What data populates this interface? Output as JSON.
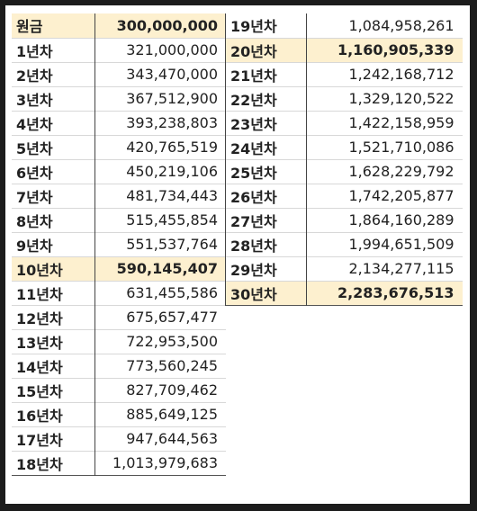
{
  "left_rows": [
    {
      "label": "원금",
      "value": "300,000,000",
      "highlight": true
    },
    {
      "label": "1년차",
      "value": "321,000,000",
      "highlight": false
    },
    {
      "label": "2년차",
      "value": "343,470,000",
      "highlight": false
    },
    {
      "label": "3년차",
      "value": "367,512,900",
      "highlight": false
    },
    {
      "label": "4년차",
      "value": "393,238,803",
      "highlight": false
    },
    {
      "label": "5년차",
      "value": "420,765,519",
      "highlight": false
    },
    {
      "label": "6년차",
      "value": "450,219,106",
      "highlight": false
    },
    {
      "label": "7년차",
      "value": "481,734,443",
      "highlight": false
    },
    {
      "label": "8년차",
      "value": "515,455,854",
      "highlight": false
    },
    {
      "label": "9년차",
      "value": "551,537,764",
      "highlight": false
    },
    {
      "label": "10년차",
      "value": "590,145,407",
      "highlight": true
    },
    {
      "label": "11년차",
      "value": "631,455,586",
      "highlight": false
    },
    {
      "label": "12년차",
      "value": "675,657,477",
      "highlight": false
    },
    {
      "label": "13년차",
      "value": "722,953,500",
      "highlight": false
    },
    {
      "label": "14년차",
      "value": "773,560,245",
      "highlight": false
    },
    {
      "label": "15년차",
      "value": "827,709,462",
      "highlight": false
    },
    {
      "label": "16년차",
      "value": "885,649,125",
      "highlight": false
    },
    {
      "label": "17년차",
      "value": "947,644,563",
      "highlight": false
    },
    {
      "label": "18년차",
      "value": "1,013,979,683",
      "highlight": false
    }
  ],
  "right_rows": [
    {
      "label": "19년차",
      "value": "1,084,958,261",
      "highlight": false
    },
    {
      "label": "20년차",
      "value": "1,160,905,339",
      "highlight": true
    },
    {
      "label": "21년차",
      "value": "1,242,168,712",
      "highlight": false
    },
    {
      "label": "22년차",
      "value": "1,329,120,522",
      "highlight": false
    },
    {
      "label": "23년차",
      "value": "1,422,158,959",
      "highlight": false
    },
    {
      "label": "24년차",
      "value": "1,521,710,086",
      "highlight": false
    },
    {
      "label": "25년차",
      "value": "1,628,229,792",
      "highlight": false
    },
    {
      "label": "26년차",
      "value": "1,742,205,877",
      "highlight": false
    },
    {
      "label": "27년차",
      "value": "1,864,160,289",
      "highlight": false
    },
    {
      "label": "28년차",
      "value": "1,994,651,509",
      "highlight": false
    },
    {
      "label": "29년차",
      "value": "2,134,277,115",
      "highlight": false
    },
    {
      "label": "30년차",
      "value": "2,283,676,513",
      "highlight": true
    }
  ],
  "colors": {
    "highlight": "#fdf0cf",
    "background": "#1c1c1c"
  }
}
